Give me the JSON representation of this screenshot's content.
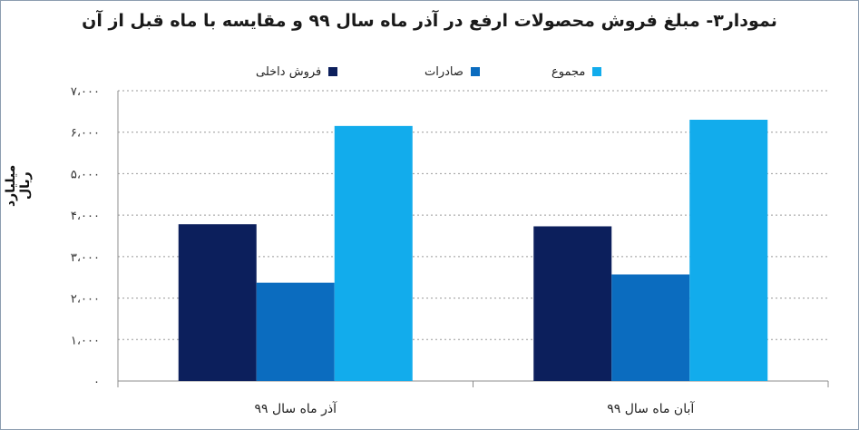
{
  "title": "نمودار۳- مبلغ فروش محصولات ارفع در آذر ماه سال ۹۹ و مقایسه با ماه قبل از آن",
  "legend": [
    {
      "label": "فروش داخلی",
      "color": "#0c1f5c"
    },
    {
      "label": "صادرات",
      "color": "#0b6cbf"
    },
    {
      "label": "مجموع",
      "color": "#12acec"
    }
  ],
  "chart_data": {
    "type": "bar",
    "title": "نمودار۳- مبلغ فروش محصولات ارفع در آذر ماه سال ۹۹ و مقایسه با ماه قبل از آن",
    "ylabel": "میلیارد ریال",
    "xlabel": "",
    "ylim": [
      0,
      7000
    ],
    "yticks": [
      0,
      1000,
      2000,
      3000,
      4000,
      5000,
      6000,
      7000
    ],
    "ytick_labels": [
      "۰",
      "۱،۰۰۰",
      "۲،۰۰۰",
      "۳،۰۰۰",
      "۴،۰۰۰",
      "۵،۰۰۰",
      "۶،۰۰۰",
      "۷،۰۰۰"
    ],
    "categories": [
      "آذر ماه سال ۹۹",
      "آبان ماه سال ۹۹"
    ],
    "series": [
      {
        "name": "فروش داخلی",
        "color": "#0c1f5c",
        "values": [
          3780,
          3730
        ]
      },
      {
        "name": "صادرات",
        "color": "#0b6cbf",
        "values": [
          2370,
          2570
        ]
      },
      {
        "name": "مجموع",
        "color": "#12acec",
        "values": [
          6150,
          6300
        ]
      }
    ],
    "grid": true,
    "legend_position": "top"
  }
}
